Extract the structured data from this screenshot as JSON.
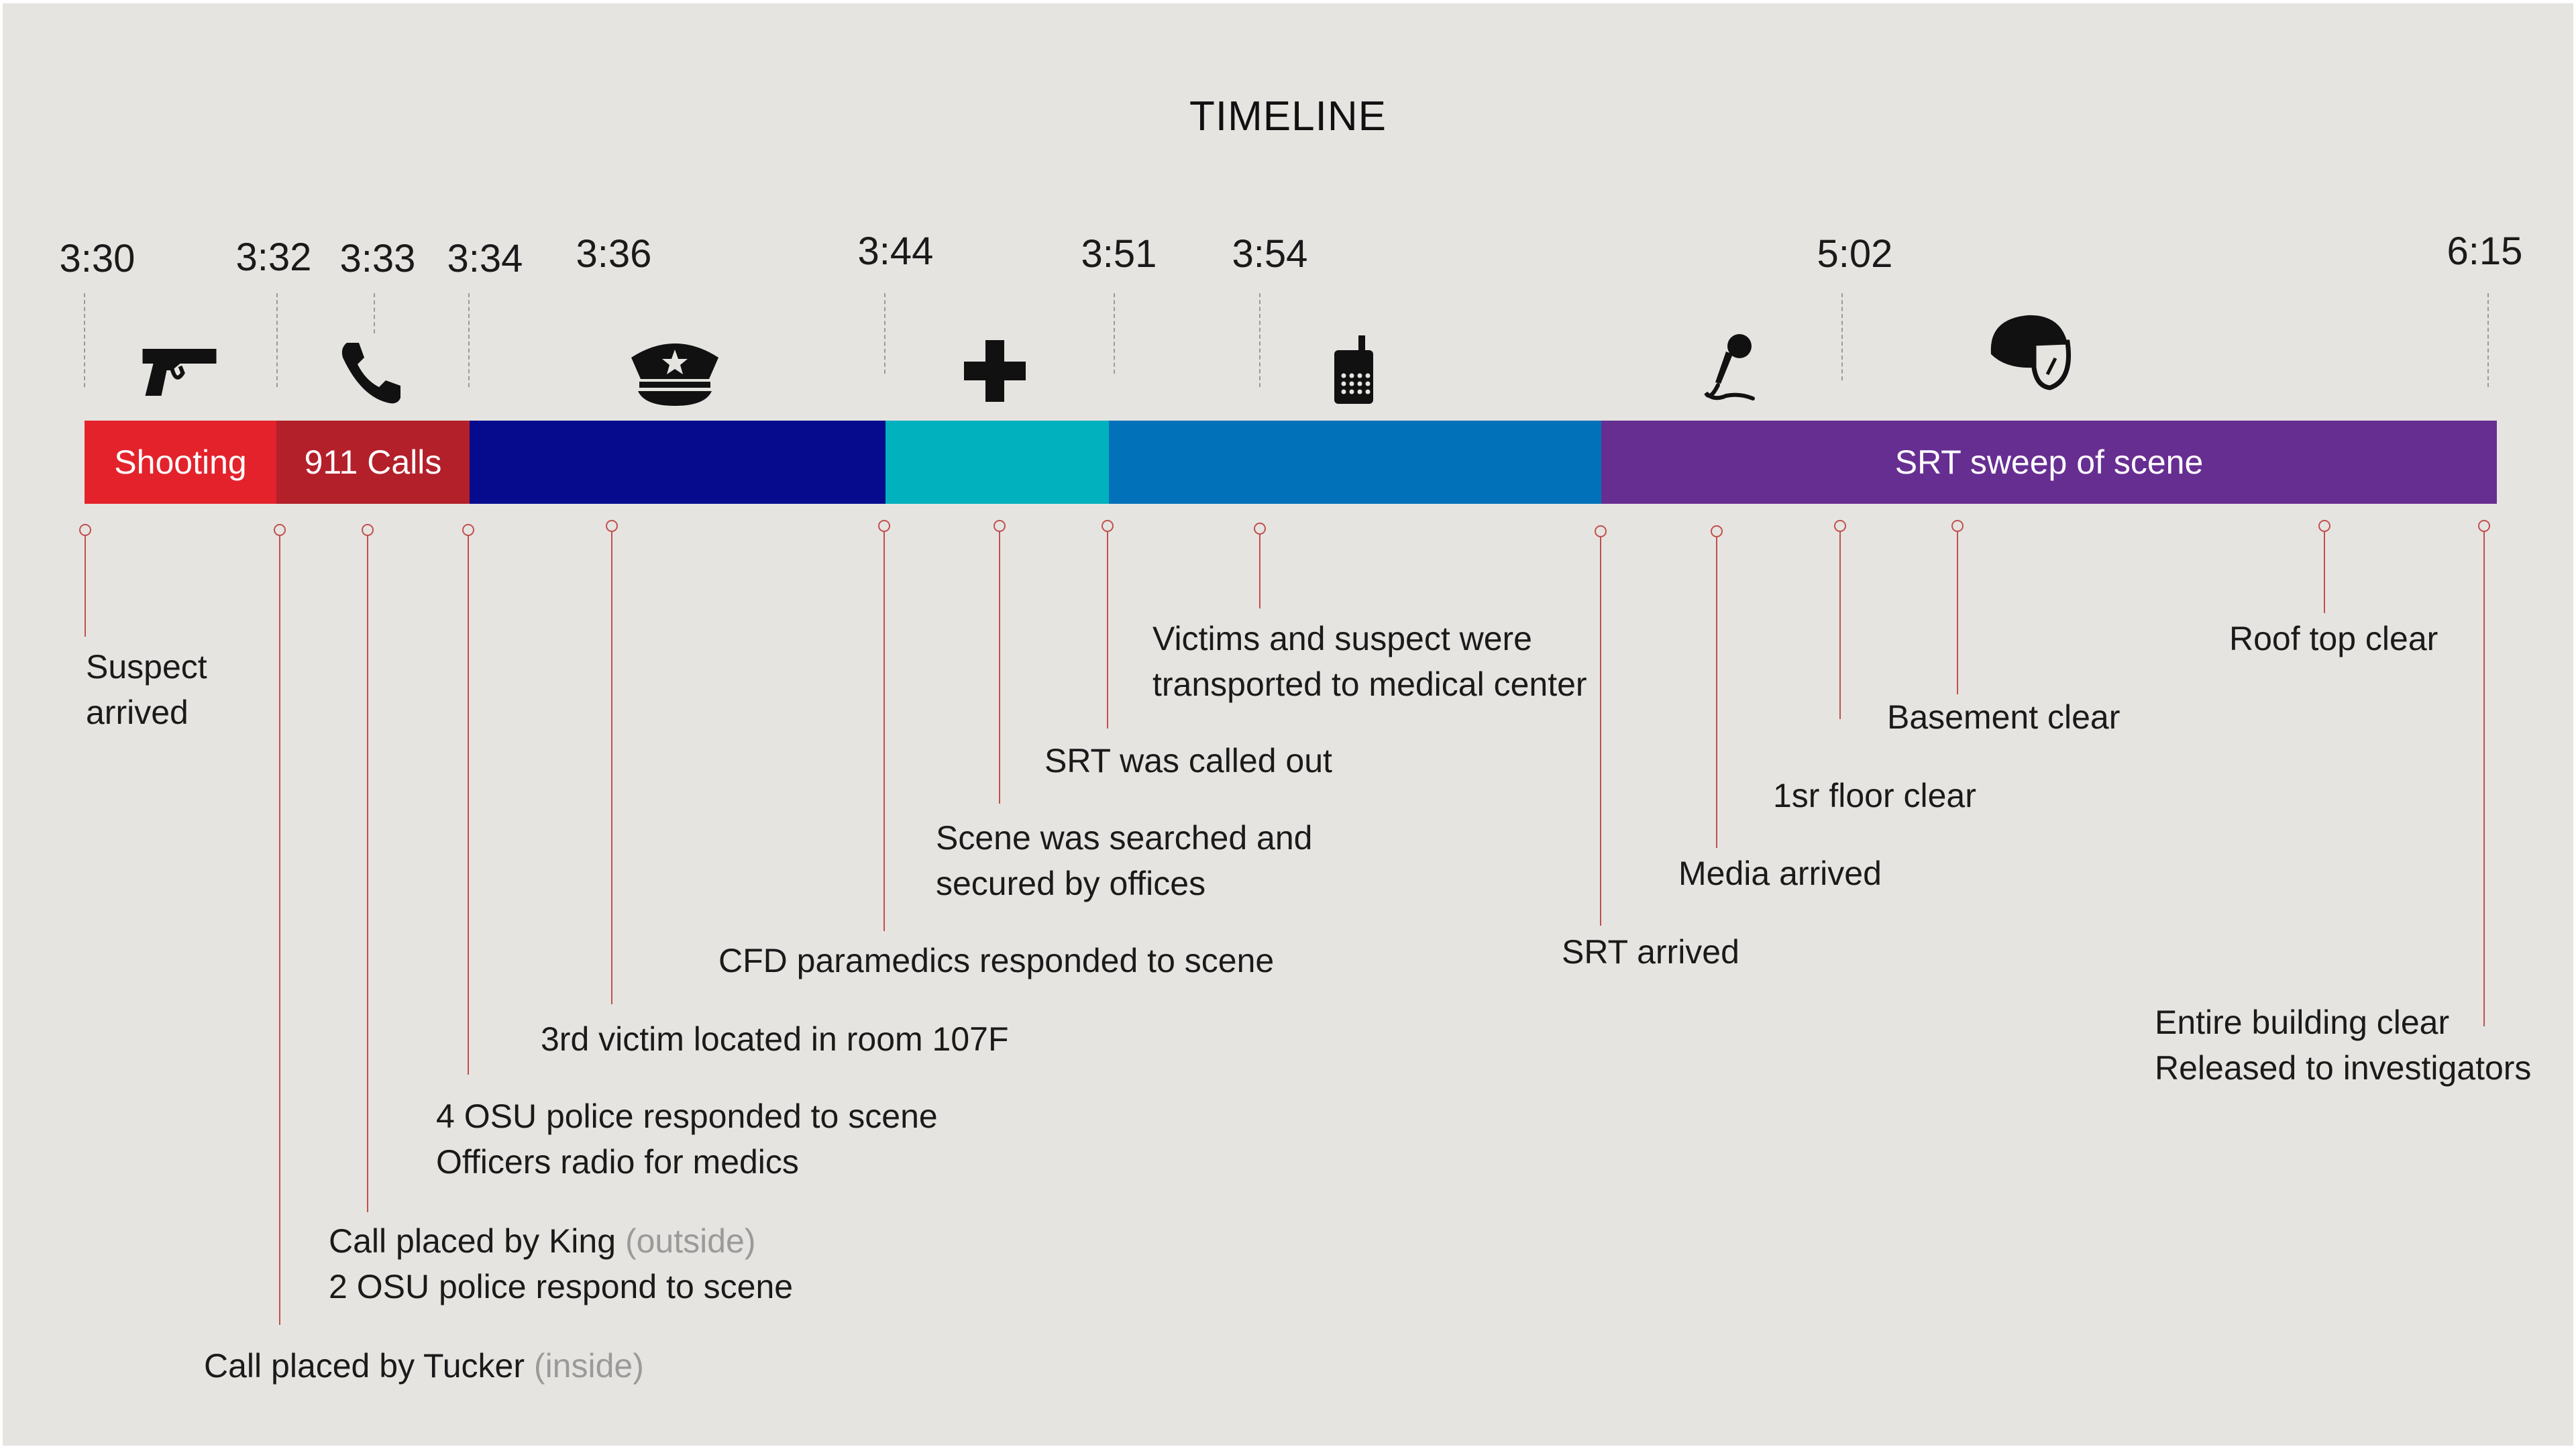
{
  "title": "TIMELINE",
  "times": [
    "3:30",
    "3:32",
    "3:33",
    "3:34",
    "3:36",
    "3:44",
    "3:51",
    "3:54",
    "5:02",
    "6:15"
  ],
  "icons": [
    "gun-icon",
    "phone-icon",
    "police-cap-icon",
    "medical-cross-icon",
    "radio-icon",
    "microphone-icon",
    "riot-helmet-icon"
  ],
  "phases": [
    {
      "label": "Shooting",
      "color": "#e3222b"
    },
    {
      "label": "911 Calls",
      "color": "#b3202a"
    },
    {
      "label": "",
      "color": "#060b8e"
    },
    {
      "label": "",
      "color": "#01b1bd"
    },
    {
      "label": "",
      "color": "#0172b9"
    },
    {
      "label": "SRT sweep of scene",
      "color": "#672e92"
    }
  ],
  "events": [
    {
      "lines": [
        "Suspect",
        "arrived"
      ]
    },
    {
      "lines": [
        "Call placed by Tucker"
      ],
      "note": "(inside)"
    },
    {
      "lines": [
        "Call placed by King",
        "2 OSU police respond to scene"
      ],
      "note": "(outside)"
    },
    {
      "lines": [
        "4 OSU police responded to scene",
        "Officers radio for medics"
      ]
    },
    {
      "lines": [
        "3rd victim located in room 107F"
      ]
    },
    {
      "lines": [
        "CFD paramedics responded to scene"
      ]
    },
    {
      "lines": [
        "Scene was searched and",
        "secured by offices"
      ]
    },
    {
      "lines": [
        "SRT was called out"
      ]
    },
    {
      "lines": [
        "Victims and suspect were",
        "transported to medical center"
      ]
    },
    {
      "lines": [
        "SRT arrived"
      ]
    },
    {
      "lines": [
        "Media arrived"
      ]
    },
    {
      "lines": [
        "1sr floor clear"
      ]
    },
    {
      "lines": [
        "Basement clear"
      ]
    },
    {
      "lines": [
        "Roof top clear"
      ]
    },
    {
      "lines": [
        "Entire building clear",
        "Released to investigators"
      ]
    }
  ],
  "colors": {
    "stem": "#c0504d",
    "background": "#e6e4e1",
    "note": "#9a9a9a"
  }
}
